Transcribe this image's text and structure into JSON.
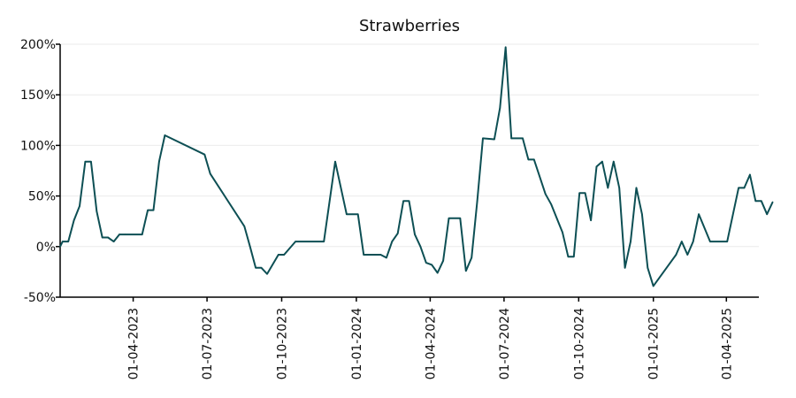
{
  "chart_data": {
    "type": "line",
    "title": "Strawberries",
    "xlabel": "",
    "ylabel": "",
    "ylim": [
      -50,
      200
    ],
    "xlim": [
      "2023-01-01",
      "2025-05-11"
    ],
    "y_ticks": [
      {
        "value": -50,
        "label": "-50%"
      },
      {
        "value": 0,
        "label": "0%"
      },
      {
        "value": 50,
        "label": "50%"
      },
      {
        "value": 100,
        "label": "100%"
      },
      {
        "value": 150,
        "label": "150%"
      },
      {
        "value": 200,
        "label": "200%"
      }
    ],
    "x_ticks": [
      {
        "date": "2023-04-01",
        "label": "01-04-2023"
      },
      {
        "date": "2023-07-01",
        "label": "01-07-2023"
      },
      {
        "date": "2023-10-01",
        "label": "01-10-2023"
      },
      {
        "date": "2024-01-01",
        "label": "01-01-2024"
      },
      {
        "date": "2024-04-01",
        "label": "01-04-2024"
      },
      {
        "date": "2024-07-01",
        "label": "01-07-2024"
      },
      {
        "date": "2024-10-01",
        "label": "01-10-2024"
      },
      {
        "date": "2025-01-01",
        "label": "01-01-2025"
      },
      {
        "date": "2025-04-01",
        "label": "01-04-2025"
      }
    ],
    "grid": "horizontal",
    "color": "#0d4f54",
    "series": [
      {
        "values": [
          [
            "2023-01-01",
            0
          ],
          [
            "2023-01-04",
            5
          ],
          [
            "2023-01-11",
            5
          ],
          [
            "2023-01-18",
            26
          ],
          [
            "2023-01-25",
            40
          ],
          [
            "2023-02-01",
            84
          ],
          [
            "2023-02-08",
            84
          ],
          [
            "2023-02-15",
            35
          ],
          [
            "2023-02-22",
            9
          ],
          [
            "2023-03-01",
            9
          ],
          [
            "2023-03-08",
            5
          ],
          [
            "2023-03-15",
            12
          ],
          [
            "2023-03-22",
            12
          ],
          [
            "2023-04-12",
            12
          ],
          [
            "2023-04-19",
            36
          ],
          [
            "2023-04-26",
            36
          ],
          [
            "2023-05-03",
            84
          ],
          [
            "2023-05-10",
            110
          ],
          [
            "2023-06-28",
            91
          ],
          [
            "2023-07-05",
            72
          ],
          [
            "2023-08-16",
            20
          ],
          [
            "2023-08-23",
            0
          ],
          [
            "2023-08-30",
            -21
          ],
          [
            "2023-09-06",
            -21
          ],
          [
            "2023-09-13",
            -27
          ],
          [
            "2023-09-27",
            -8
          ],
          [
            "2023-10-04",
            -8
          ],
          [
            "2023-10-18",
            5
          ],
          [
            "2023-11-22",
            5
          ],
          [
            "2023-12-06",
            84
          ],
          [
            "2023-12-20",
            32
          ],
          [
            "2023-12-27",
            32
          ],
          [
            "2024-01-03",
            32
          ],
          [
            "2024-01-10",
            -8
          ],
          [
            "2024-01-24",
            -8
          ],
          [
            "2024-01-31",
            -8
          ],
          [
            "2024-02-07",
            -11
          ],
          [
            "2024-02-14",
            5
          ],
          [
            "2024-02-21",
            13
          ],
          [
            "2024-02-28",
            45
          ],
          [
            "2024-03-06",
            45
          ],
          [
            "2024-03-13",
            12
          ],
          [
            "2024-03-20",
            0
          ],
          [
            "2024-03-27",
            -16
          ],
          [
            "2024-04-03",
            -18
          ],
          [
            "2024-04-10",
            -26
          ],
          [
            "2024-04-17",
            -14
          ],
          [
            "2024-04-24",
            28
          ],
          [
            "2024-05-08",
            28
          ],
          [
            "2024-05-15",
            -24
          ],
          [
            "2024-05-22",
            -11
          ],
          [
            "2024-05-29",
            45
          ],
          [
            "2024-06-05",
            107
          ],
          [
            "2024-06-19",
            106
          ],
          [
            "2024-06-26",
            137
          ],
          [
            "2024-07-03",
            197
          ],
          [
            "2024-07-10",
            107
          ],
          [
            "2024-07-24",
            107
          ],
          [
            "2024-07-31",
            86
          ],
          [
            "2024-08-07",
            86
          ],
          [
            "2024-08-21",
            52
          ],
          [
            "2024-08-28",
            42
          ],
          [
            "2024-09-11",
            14
          ],
          [
            "2024-09-18",
            -10
          ],
          [
            "2024-09-25",
            -10
          ],
          [
            "2024-10-02",
            53
          ],
          [
            "2024-10-09",
            53
          ],
          [
            "2024-10-16",
            26
          ],
          [
            "2024-10-23",
            79
          ],
          [
            "2024-10-30",
            84
          ],
          [
            "2024-11-06",
            58
          ],
          [
            "2024-11-13",
            84
          ],
          [
            "2024-11-20",
            58
          ],
          [
            "2024-11-27",
            -21
          ],
          [
            "2024-12-04",
            5
          ],
          [
            "2024-12-11",
            58
          ],
          [
            "2024-12-18",
            32
          ],
          [
            "2024-12-25",
            -21
          ],
          [
            "2025-01-01",
            -39
          ],
          [
            "2025-01-29",
            -8
          ],
          [
            "2025-02-05",
            5
          ],
          [
            "2025-02-12",
            -8
          ],
          [
            "2025-02-19",
            5
          ],
          [
            "2025-02-26",
            32
          ],
          [
            "2025-03-12",
            5
          ],
          [
            "2025-04-02",
            5
          ],
          [
            "2025-04-16",
            58
          ],
          [
            "2025-04-23",
            58
          ],
          [
            "2025-04-30",
            71
          ],
          [
            "2025-05-07",
            45
          ],
          [
            "2025-05-14",
            45
          ],
          [
            "2025-05-21",
            32
          ],
          [
            "2025-05-28",
            44
          ]
        ]
      }
    ]
  }
}
